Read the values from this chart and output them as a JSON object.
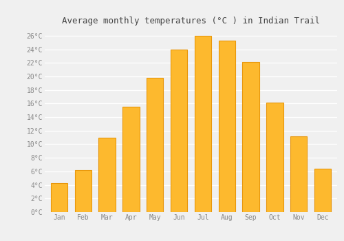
{
  "title": "Average monthly temperatures (°C ) in Indian Trail",
  "months": [
    "Jan",
    "Feb",
    "Mar",
    "Apr",
    "May",
    "Jun",
    "Jul",
    "Aug",
    "Sep",
    "Oct",
    "Nov",
    "Dec"
  ],
  "values": [
    4.3,
    6.2,
    11.0,
    15.5,
    19.8,
    24.0,
    26.0,
    25.3,
    22.1,
    16.1,
    11.2,
    6.4
  ],
  "bar_color": "#FDB92E",
  "bar_edge_color": "#E8960A",
  "ylim": [
    0,
    27
  ],
  "ytick_max": 26,
  "ytick_step": 2,
  "background_color": "#f0f0f0",
  "grid_color": "#ffffff",
  "title_fontsize": 9,
  "tick_fontsize": 7,
  "bar_width": 0.7
}
